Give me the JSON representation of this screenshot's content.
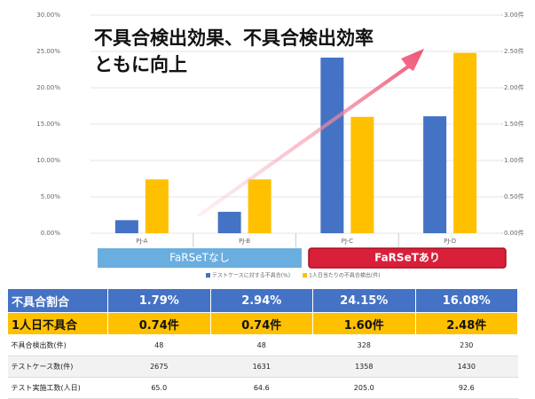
{
  "chart_data": {
    "type": "bar",
    "annotation": [
      "不具合検出効果、不具合検出効率",
      "ともに向上"
    ],
    "categories": [
      "PJ-A",
      "PJ-B",
      "PJ-C",
      "PJ-D"
    ],
    "groups": [
      "FaRSeTなし",
      "FaRSeTあり"
    ],
    "series": [
      {
        "name": "テストケースに対する不具合(%)",
        "color": "#4472c4",
        "values": [
          1.79,
          2.94,
          24.15,
          16.08
        ]
      },
      {
        "name": "1人日当たりの不具合検出(件)",
        "color": "#ffc000",
        "values": [
          0.74,
          0.74,
          1.6,
          2.48
        ],
        "axis": "y2"
      }
    ],
    "ylim": [
      0,
      30
    ],
    "yticks": [
      {
        "value": 0,
        "label": "0.00%"
      },
      {
        "value": 5,
        "label": "5.00%"
      },
      {
        "value": 10,
        "label": "10.00%"
      },
      {
        "value": 15,
        "label": "15.00%"
      },
      {
        "value": 20,
        "label": "20.00%"
      },
      {
        "value": 25,
        "label": "25.00%"
      },
      {
        "value": 30,
        "label": "30.00%"
      }
    ],
    "y2lim": [
      0,
      3
    ],
    "y2ticks": [
      {
        "value": 0,
        "label": "0.00件"
      },
      {
        "value": 0.5,
        "label": "0.50件"
      },
      {
        "value": 1,
        "label": "1.00件"
      },
      {
        "value": 1.5,
        "label": "1.50件"
      },
      {
        "value": 2,
        "label": "2.00件"
      },
      {
        "value": 2.5,
        "label": "2.50件"
      },
      {
        "value": 3,
        "label": "3.00件"
      }
    ],
    "grid": true
  },
  "table": {
    "rows": [
      [
        "不具合割合",
        "1.79%",
        "2.94%",
        "24.15%",
        "16.08%"
      ],
      [
        "1人日不具合",
        "0.74件",
        "0.74件",
        "1.60件",
        "2.48件"
      ],
      [
        "不具合検出数(件)",
        "48",
        "48",
        "328",
        "230"
      ],
      [
        "テストケース数(件)",
        "2675",
        "1631",
        "1358",
        "1430"
      ],
      [
        "テスト実施工数(人日)",
        "65.0",
        "64.6",
        "205.0",
        "92.6"
      ]
    ]
  }
}
